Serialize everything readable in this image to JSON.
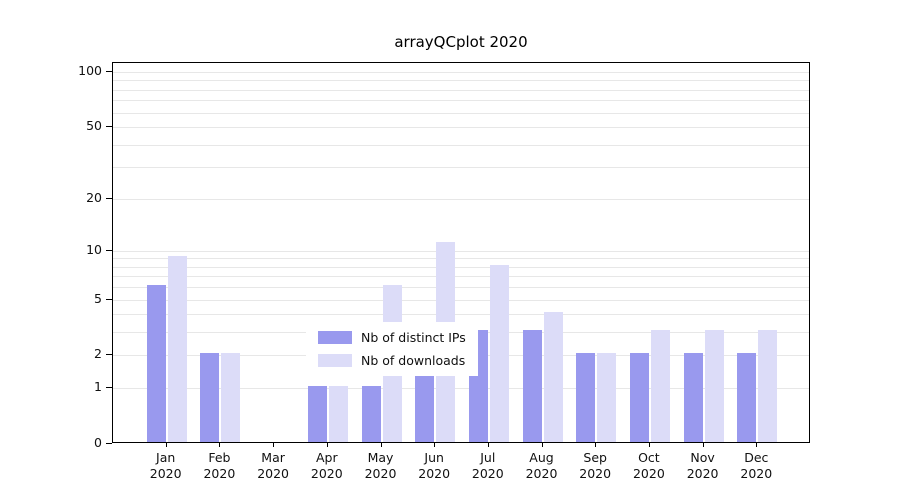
{
  "chart_data": {
    "type": "bar",
    "title": "arrayQCplot 2020",
    "scale": "log1p",
    "grid": true,
    "legend_position": "bottom-center-inside",
    "ylim": [
      0,
      100
    ],
    "yticks": [
      0,
      1,
      2,
      5,
      10,
      20,
      50,
      100
    ],
    "gridlines": [
      1,
      2,
      3,
      4,
      5,
      6,
      7,
      8,
      9,
      10,
      20,
      30,
      40,
      50,
      60,
      70,
      80,
      90,
      100
    ],
    "categories": [
      "Jan",
      "Feb",
      "Mar",
      "Apr",
      "May",
      "Jun",
      "Jul",
      "Aug",
      "Sep",
      "Oct",
      "Nov",
      "Dec"
    ],
    "year": "2020",
    "series": [
      {
        "name": "Nb of distinct IPs",
        "color": "#9999ee",
        "values": [
          6,
          2,
          0,
          1,
          1,
          3,
          3,
          3,
          2,
          2,
          2,
          2
        ]
      },
      {
        "name": "Nb of downloads",
        "color": "#dcdcf8",
        "values": [
          9,
          2,
          0,
          1,
          6,
          11,
          8,
          4,
          2,
          3,
          3,
          3
        ]
      }
    ]
  }
}
